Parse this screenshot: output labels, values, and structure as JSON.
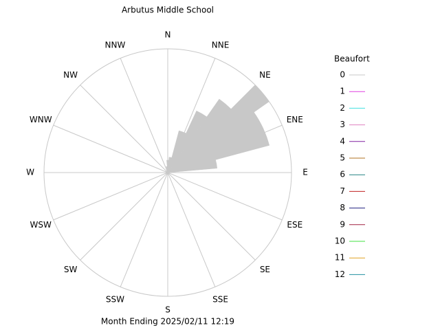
{
  "chart_data": {
    "type": "windrose",
    "title": "Arbutus Middle School",
    "footer": "Month Ending 2025/02/11 12:19",
    "directions": [
      "N",
      "NNE",
      "NE",
      "ENE",
      "E",
      "ESE",
      "SE",
      "SSE",
      "S",
      "SSW",
      "SW",
      "WSW",
      "W",
      "WNW",
      "NW",
      "NNW"
    ],
    "x": [
      0,
      10,
      20,
      30,
      40,
      50,
      60,
      70,
      80,
      90,
      100,
      110,
      120,
      130,
      140,
      150,
      160,
      170,
      180,
      190,
      200,
      210,
      220,
      230,
      240,
      250,
      260,
      270,
      280,
      290,
      300,
      310,
      320,
      330,
      340,
      350
    ],
    "rlim": [
      0,
      20
    ],
    "legend_title": "Beaufort",
    "series": [
      {
        "name": "0",
        "color": "#c8c8c8",
        "values": [
          2,
          2.5,
          7,
          11,
          14.5,
          20,
          17,
          17,
          8,
          0,
          0,
          0,
          0,
          0,
          0,
          0,
          0,
          0,
          0,
          0,
          0,
          0,
          0,
          0,
          0,
          0,
          0,
          0,
          0,
          0,
          0,
          0,
          0,
          0,
          0,
          1
        ]
      },
      {
        "name": "1",
        "color": "#e040e0"
      },
      {
        "name": "2",
        "color": "#40e0e0"
      },
      {
        "name": "3",
        "color": "#e080c0"
      },
      {
        "name": "4",
        "color": "#8020a0"
      },
      {
        "name": "5",
        "color": "#b07020"
      },
      {
        "name": "6",
        "color": "#208080"
      },
      {
        "name": "7",
        "color": "#c02020"
      },
      {
        "name": "8",
        "color": "#202080"
      },
      {
        "name": "9",
        "color": "#a02040"
      },
      {
        "name": "10",
        "color": "#40e040"
      },
      {
        "name": "11",
        "color": "#e0a020"
      },
      {
        "name": "12",
        "color": "#2090a0"
      }
    ]
  }
}
